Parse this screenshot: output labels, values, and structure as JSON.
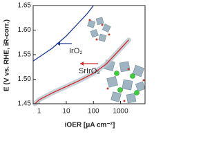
{
  "chart_data": {
    "type": "line",
    "y_label": "E (V vs. RHE, iR-corr.)",
    "x_label": "iOER [μA cm⁻²]",
    "log_x": true,
    "xlim": [
      0.6,
      8000
    ],
    "ylim": [
      1.45,
      1.65
    ],
    "xticks": [
      1,
      10,
      100,
      1000
    ],
    "yticks": [
      {
        "value": 1.45,
        "label": "1.45"
      },
      {
        "value": 1.5,
        "label": "1.50"
      },
      {
        "value": 1.55,
        "label": "1.55"
      },
      {
        "value": 1.6,
        "label": "1.60"
      },
      {
        "value": 1.65,
        "label": "1.65"
      }
    ],
    "series": [
      {
        "name": "IrO₂",
        "color": "#1f3a9e",
        "x": [
          0.6,
          1,
          3,
          10,
          30,
          60,
          100
        ],
        "values": [
          1.537,
          1.545,
          1.563,
          1.588,
          1.616,
          1.634,
          1.65
        ]
      },
      {
        "name": "SrIrO₃",
        "color": "#d42a2a",
        "band": "#b9c7d2",
        "x": [
          0.7,
          1,
          3,
          10,
          30,
          100,
          300,
          1000,
          2000
        ],
        "values": [
          1.45,
          1.458,
          1.472,
          1.485,
          1.497,
          1.512,
          1.531,
          1.562,
          1.58
        ]
      }
    ]
  }
}
